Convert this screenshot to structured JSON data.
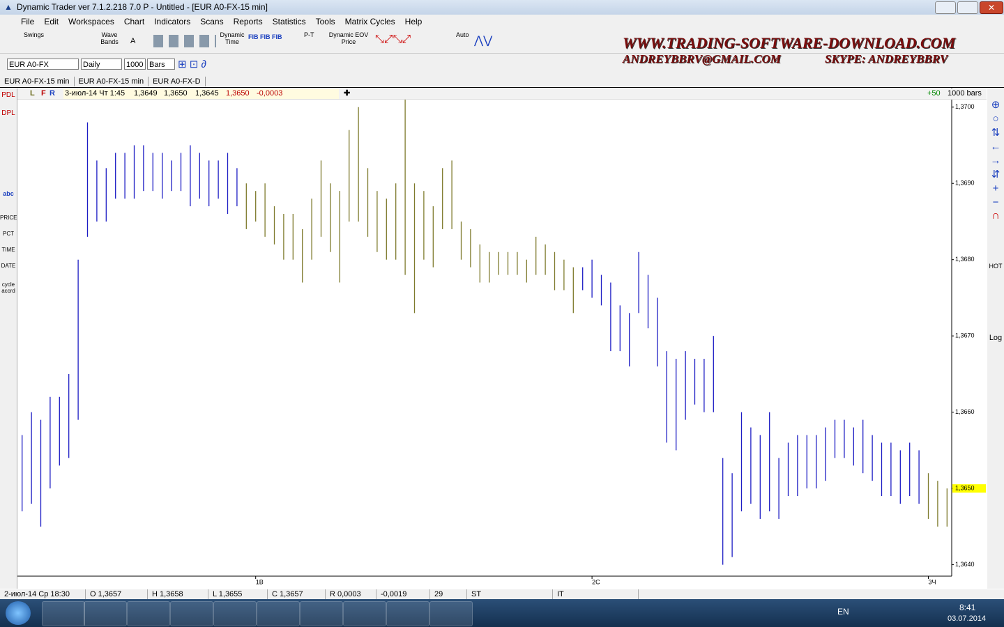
{
  "window": {
    "title": "Dynamic Trader ver 7.1.2.218 7.0 P - Untitled - [EUR A0-FX-15 min]"
  },
  "menu": [
    "File",
    "Edit",
    "Workspaces",
    "Chart",
    "Indicators",
    "Scans",
    "Reports",
    "Statistics",
    "Tools",
    "Matrix Cycles",
    "Help"
  ],
  "toolbar": {
    "swings": "Swings",
    "wave_bands": "Wave Bands",
    "a": "A",
    "dynamic_time": "Dynamic Time",
    "pt": "P-T",
    "dynamic_eov": "Dynamic EOV Price",
    "auto": "Auto"
  },
  "banner": {
    "site": "WWW.TRADING-SOFTWARE-DOWNLOAD.COM",
    "email": "ANDREYBBRV@GMAIL.COM",
    "skype": "SKYPE: ANDREYBBRV"
  },
  "controls": {
    "symbol": "EUR A0-FX",
    "period": "Daily",
    "bars": "1000",
    "mode": "Bars"
  },
  "tabs": [
    "EUR A0-FX-15 min",
    "EUR A0-FX-15 min",
    "EUR A0-FX-D"
  ],
  "info_bar": {
    "flags": [
      "L",
      "F",
      "R"
    ],
    "date": "3-июл-14 Чт 1:45",
    "open": "1,3649",
    "high": "1,3650",
    "low": "1,3645",
    "close": "1,3650",
    "change": "-0,0003",
    "offset": "+50",
    "bars": "1000 bars"
  },
  "left_tools": [
    "PDL",
    "DPL",
    "abc",
    "PRICE",
    "PCT",
    "TIME",
    "DATE",
    "cycle accrd"
  ],
  "right_tools": [
    "HOT",
    "Log"
  ],
  "status_bar": [
    "2-июл-14 Ср 18:30",
    "O 1,3657",
    "H 1,3658",
    "L 1,3655",
    "C 1,3657",
    "R 0,0003",
    "-0,0019",
    "29",
    "ST",
    "IT"
  ],
  "taskbar": {
    "lang": "EN",
    "time": "8:41",
    "date": "03.07.2014"
  },
  "chart_data": {
    "type": "hilo",
    "categories": [
      null,
      null,
      null,
      null,
      null,
      null,
      null,
      null,
      null,
      null,
      null,
      null,
      null,
      null,
      null,
      null,
      null,
      null,
      null,
      null,
      null,
      null,
      null,
      null,
      null,
      "1В",
      null,
      null,
      null,
      null,
      null,
      null,
      null,
      null,
      null,
      null,
      null,
      null,
      null,
      null,
      null,
      null,
      null,
      null,
      null,
      null,
      null,
      null,
      null,
      null,
      null,
      null,
      null,
      null,
      null,
      null,
      null,
      null,
      null,
      null,
      null,
      "2С",
      null,
      null,
      null,
      null,
      null,
      null,
      null,
      null,
      null,
      null,
      null,
      null,
      null,
      null,
      null,
      null,
      null,
      null,
      null,
      null,
      null,
      null,
      null,
      null,
      null,
      null,
      null,
      null,
      null,
      null,
      null,
      null,
      null,
      null,
      null,
      "3Ч",
      null,
      null
    ],
    "high": [
      1.3657,
      1.366,
      1.3659,
      1.3662,
      1.3662,
      1.3665,
      1.368,
      1.3698,
      1.3693,
      1.3692,
      1.3694,
      1.3694,
      1.3695,
      1.3695,
      1.3694,
      1.3694,
      1.3693,
      1.3694,
      1.3695,
      1.3694,
      1.3693,
      1.3693,
      1.3694,
      1.3692,
      1.369,
      1.3689,
      1.369,
      1.3687,
      1.3686,
      1.3686,
      1.3684,
      1.3688,
      1.3693,
      1.369,
      1.3689,
      1.3697,
      1.37,
      1.3692,
      1.3689,
      1.3688,
      1.369,
      1.3701,
      1.369,
      1.3689,
      1.3687,
      1.3692,
      1.3693,
      1.3685,
      1.3684,
      1.3682,
      1.3681,
      1.3681,
      1.3681,
      1.3681,
      1.368,
      1.3683,
      1.3682,
      1.3681,
      1.368,
      1.3679,
      1.3679,
      1.368,
      1.3678,
      1.3677,
      1.3674,
      1.3673,
      1.3681,
      1.3678,
      1.3675,
      1.3668,
      1.3667,
      1.3668,
      1.3667,
      1.3667,
      1.367,
      1.3654,
      1.3652,
      1.366,
      1.3658,
      1.3657,
      1.366,
      1.3654,
      1.3656,
      1.3657,
      1.3657,
      1.3657,
      1.3658,
      1.3659,
      1.3659,
      1.3658,
      1.3659,
      1.3657,
      1.3656,
      1.3656,
      1.3655,
      1.3656,
      1.3655,
      1.3652,
      1.3651,
      1.365
    ],
    "low": [
      1.3647,
      1.3648,
      1.3645,
      1.365,
      1.3653,
      1.3654,
      1.3659,
      1.3683,
      1.3685,
      1.3685,
      1.3688,
      1.3688,
      1.3688,
      1.3689,
      1.3689,
      1.3688,
      1.3689,
      1.3689,
      1.3687,
      1.3688,
      1.3687,
      1.3688,
      1.3686,
      1.3687,
      1.3684,
      1.3685,
      1.3683,
      1.3682,
      1.368,
      1.368,
      1.3677,
      1.368,
      1.3683,
      1.3681,
      1.3677,
      1.3685,
      1.3685,
      1.3683,
      1.3681,
      1.368,
      1.368,
      1.3678,
      1.3673,
      1.368,
      1.3679,
      1.3684,
      1.3684,
      1.368,
      1.3679,
      1.3677,
      1.3677,
      1.3678,
      1.3678,
      1.3678,
      1.3677,
      1.3678,
      1.3678,
      1.3676,
      1.3676,
      1.3673,
      1.3676,
      1.3675,
      1.3674,
      1.3668,
      1.3668,
      1.3666,
      1.3673,
      1.3671,
      1.3666,
      1.3656,
      1.3655,
      1.3659,
      1.3661,
      1.366,
      1.366,
      1.364,
      1.3641,
      1.3647,
      1.3648,
      1.3646,
      1.3647,
      1.3646,
      1.3649,
      1.3649,
      1.365,
      1.365,
      1.3651,
      1.3654,
      1.3654,
      1.3653,
      1.3652,
      1.3651,
      1.3649,
      1.3649,
      1.3648,
      1.3649,
      1.3648,
      1.3646,
      1.3645,
      1.3645
    ],
    "colors": [
      "#1c1cc4",
      "#7d7a2c"
    ],
    "color_index": [
      0,
      0,
      0,
      0,
      0,
      0,
      0,
      0,
      0,
      0,
      0,
      0,
      0,
      0,
      0,
      0,
      0,
      0,
      0,
      0,
      0,
      0,
      0,
      0,
      1,
      1,
      1,
      1,
      1,
      1,
      1,
      1,
      1,
      1,
      1,
      1,
      1,
      1,
      1,
      1,
      1,
      1,
      1,
      1,
      1,
      1,
      1,
      1,
      1,
      1,
      1,
      1,
      1,
      1,
      1,
      1,
      1,
      1,
      1,
      1,
      0,
      0,
      0,
      0,
      0,
      0,
      0,
      0,
      0,
      0,
      0,
      0,
      0,
      0,
      0,
      0,
      0,
      0,
      0,
      0,
      0,
      0,
      0,
      0,
      0,
      0,
      0,
      0,
      0,
      0,
      0,
      0,
      0,
      0,
      0,
      0,
      0,
      1,
      1,
      1
    ],
    "ylim": [
      1.36385,
      1.37008
    ],
    "yticks": [
      {
        "value": 1.364,
        "label": "1,3640"
      },
      {
        "value": 1.365,
        "label": "1,3650"
      },
      {
        "value": 1.366,
        "label": "1,3660"
      },
      {
        "value": 1.367,
        "label": "1,3670"
      },
      {
        "value": 1.368,
        "label": "1,3680"
      },
      {
        "value": 1.369,
        "label": "1,3690"
      },
      {
        "value": 1.37,
        "label": "1,3700"
      }
    ],
    "last_price": {
      "value": 1.365,
      "label": "1,3650"
    },
    "grid": false
  }
}
